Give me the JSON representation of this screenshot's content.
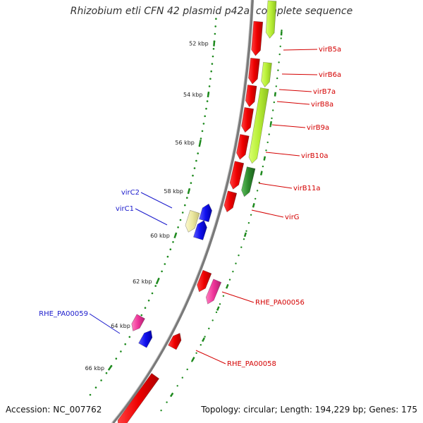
{
  "title": "Rhizobium etli CFN 42 plasmid p42a, complete sequence",
  "footer": {
    "accession": "Accession: NC_007762",
    "summary": "Topology: circular; Length: 194,229 bp; Genes: 175"
  },
  "scale_labels": [
    "52 kbp",
    "54 kbp",
    "56 kbp",
    "58 kbp",
    "60 kbp",
    "62 kbp",
    "64 kbp",
    "66 kbp"
  ],
  "gene_labels": [
    {
      "text": "virB5a",
      "color": "#d40000"
    },
    {
      "text": "virB6a",
      "color": "#d40000"
    },
    {
      "text": "virB7a",
      "color": "#d40000"
    },
    {
      "text": "virB8a",
      "color": "#d40000"
    },
    {
      "text": "virB9a",
      "color": "#d40000"
    },
    {
      "text": "virB10a",
      "color": "#d40000"
    },
    {
      "text": "virB11a",
      "color": "#d40000"
    },
    {
      "text": "virG",
      "color": "#d40000"
    },
    {
      "text": "RHE_PA00056",
      "color": "#d40000"
    },
    {
      "text": "RHE_PA00058",
      "color": "#d40000"
    },
    {
      "text": "virC2",
      "color": "#1a1acc"
    },
    {
      "text": "virC1",
      "color": "#1a1acc"
    },
    {
      "text": "RHE_PA00059",
      "color": "#1a1acc"
    }
  ],
  "colors": {
    "backbone": "#7a7a7a",
    "gc_dots": "#1e8a1e",
    "cds_forward": "#ee0000",
    "cds_light": "#b7ee35",
    "cds_dark": "#2e8b2e",
    "cds_blue": "#1010ee",
    "cds_pink": "#ee3399",
    "cds_yellow": "#ece8a0",
    "label_red": "#d40000",
    "label_blue": "#1a1acc"
  }
}
